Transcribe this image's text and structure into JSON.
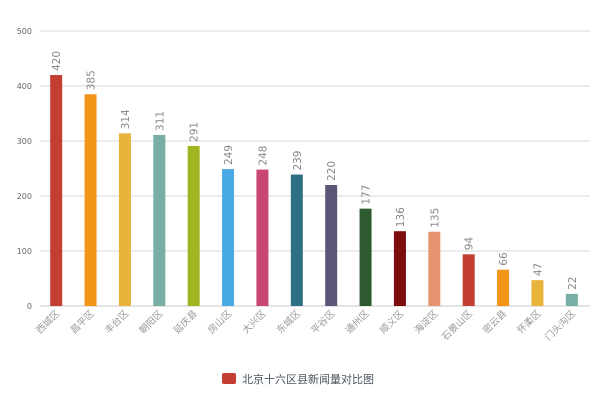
{
  "chart_data": {
    "type": "bar",
    "categories": [
      "西城区",
      "昌平区",
      "丰台区",
      "朝阳区",
      "延庆县",
      "房山区",
      "大兴区",
      "东城区",
      "平谷区",
      "通州区",
      "顺义区",
      "海淀区",
      "石景山区",
      "密云县",
      "怀柔区",
      "门头沟区"
    ],
    "values": [
      420,
      385,
      314,
      311,
      291,
      249,
      248,
      239,
      220,
      177,
      136,
      135,
      94,
      66,
      47,
      22
    ],
    "colors": [
      "#c23f32",
      "#f39519",
      "#e9b43b",
      "#78aea4",
      "#a0b51f",
      "#49a9e4",
      "#c94773",
      "#2f6f86",
      "#5a5676",
      "#2e5a2f",
      "#7b0d0d",
      "#e69370",
      "#c23f32",
      "#f39519",
      "#e9b43b",
      "#78aea4"
    ],
    "yticks": [
      0,
      100,
      200,
      300,
      400,
      500
    ],
    "ylim": [
      0,
      500
    ],
    "grid": true,
    "legend": {
      "position": "bottom-center",
      "entries": [
        {
          "name": "北京十六区县新闻量对比图",
          "color": "#c23f32"
        }
      ]
    },
    "title": "",
    "xlabel": "",
    "ylabel": ""
  }
}
